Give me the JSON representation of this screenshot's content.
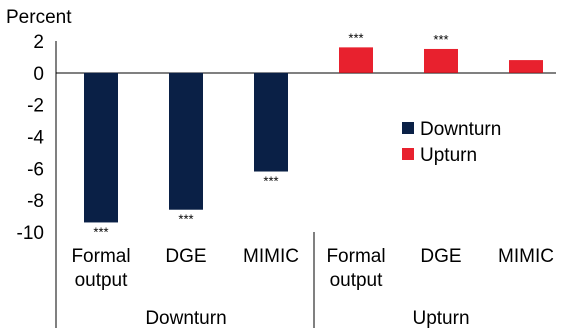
{
  "chart_data": {
    "type": "bar",
    "ylabel": "Percent",
    "ylim": [
      -10,
      2
    ],
    "yticks": [
      2,
      0,
      -2,
      -4,
      -6,
      -8,
      -10
    ],
    "categories": [
      {
        "label": [
          "Formal",
          "output"
        ],
        "group": "Downturn"
      },
      {
        "label": [
          "DGE"
        ],
        "group": "Downturn"
      },
      {
        "label": [
          "MIMIC"
        ],
        "group": "Downturn"
      },
      {
        "label": [
          "Formal",
          "output"
        ],
        "group": "Upturn"
      },
      {
        "label": [
          "DGE"
        ],
        "group": "Upturn"
      },
      {
        "label": [
          "MIMIC"
        ],
        "group": "Upturn"
      }
    ],
    "groups": [
      "Downturn",
      "Upturn"
    ],
    "series": [
      {
        "name": "Downturn",
        "color": "#0a2046",
        "values": [
          -9.4,
          -8.6,
          -6.2,
          null,
          null,
          null
        ]
      },
      {
        "name": "Upturn",
        "color": "#e8212e",
        "values": [
          null,
          null,
          null,
          1.6,
          1.5,
          0.8
        ]
      }
    ],
    "significance": [
      "***",
      "***",
      "***",
      "***",
      "***",
      ""
    ],
    "legend_position": "right"
  }
}
